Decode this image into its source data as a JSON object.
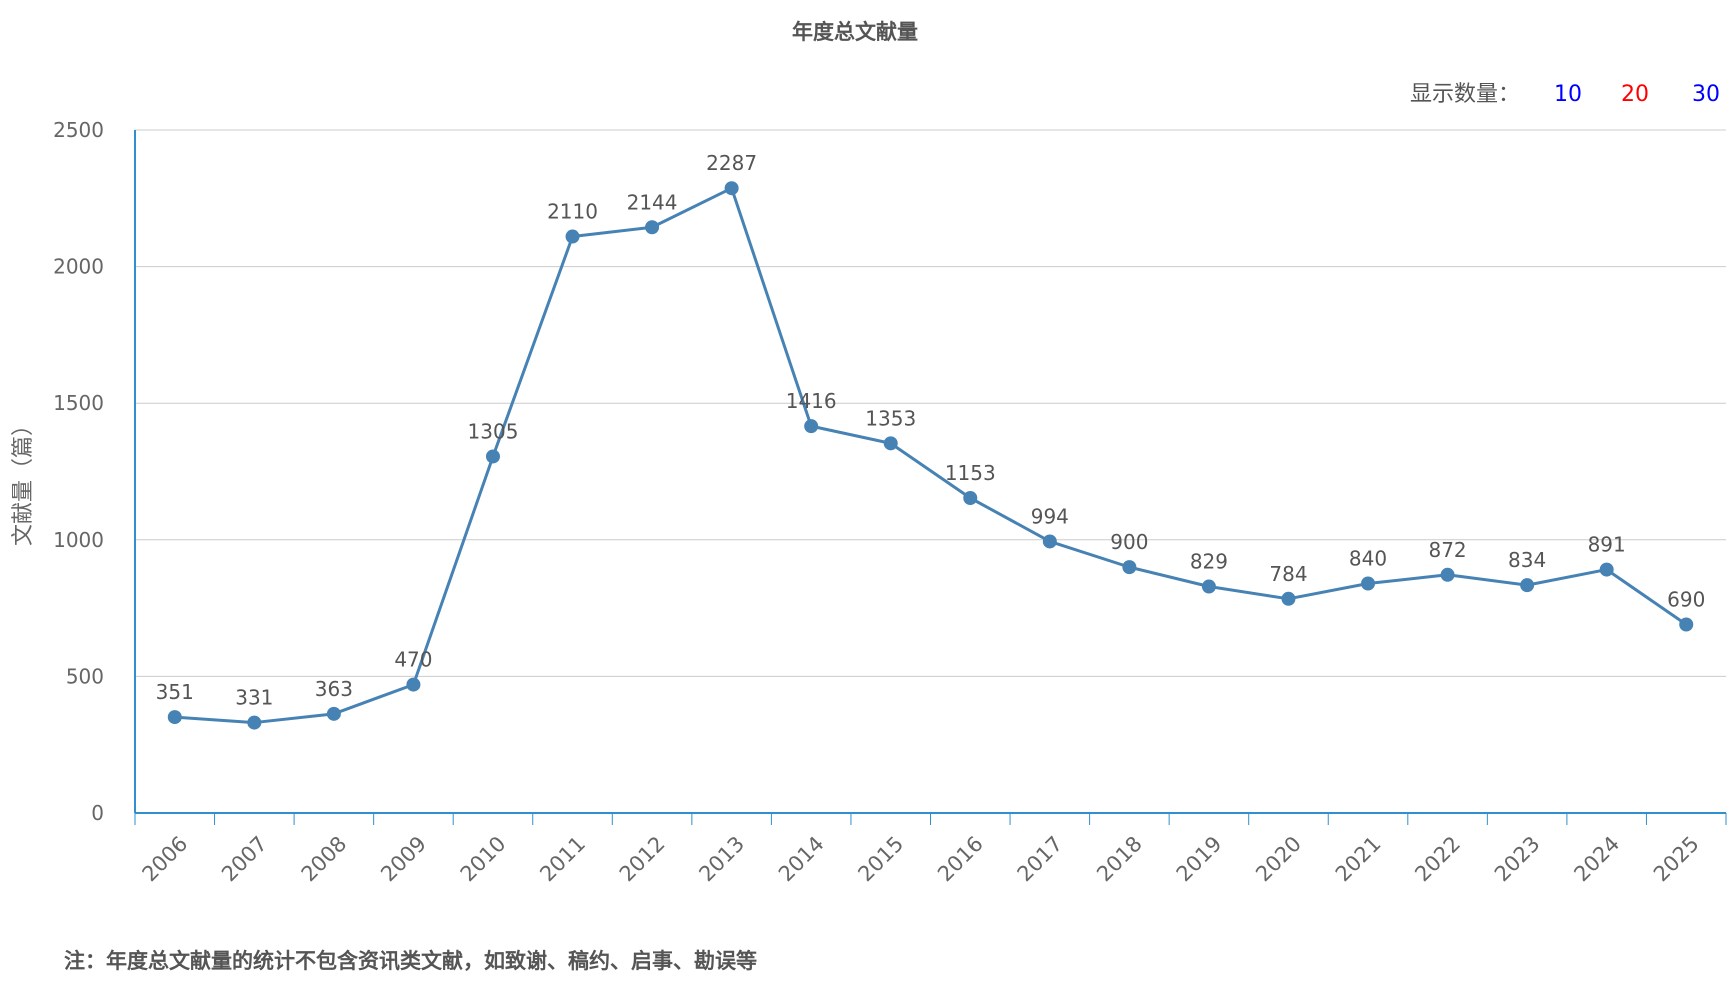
{
  "chart_data": {
    "type": "line",
    "title": "年度总文献量",
    "ylabel": "文献量（篇）",
    "xlabel": "",
    "categories": [
      "2006",
      "2007",
      "2008",
      "2009",
      "2010",
      "2011",
      "2012",
      "2013",
      "2014",
      "2015",
      "2016",
      "2017",
      "2018",
      "2019",
      "2020",
      "2021",
      "2022",
      "2023",
      "2024",
      "2025"
    ],
    "values": [
      351,
      331,
      363,
      470,
      1305,
      2110,
      2144,
      2287,
      1416,
      1353,
      1153,
      994,
      900,
      829,
      784,
      840,
      872,
      834,
      891,
      690
    ],
    "ylim": [
      0,
      2500
    ],
    "yticks": [
      0,
      500,
      1000,
      1500,
      2000,
      2500
    ],
    "grid": true,
    "line_color": "#4682b4",
    "axis_color": "#2f8fcf",
    "grid_color": "#cccccc"
  },
  "display_count": {
    "label": "显示数量：",
    "options": [
      {
        "text": "10",
        "color": "#0000ff"
      },
      {
        "text": "20",
        "color": "#ff0000"
      },
      {
        "text": "30",
        "color": "#0000ff"
      }
    ]
  },
  "footnote": "注：年度总文献量的统计不包含资讯类文献，如致谢、稿约、启事、勘误等"
}
